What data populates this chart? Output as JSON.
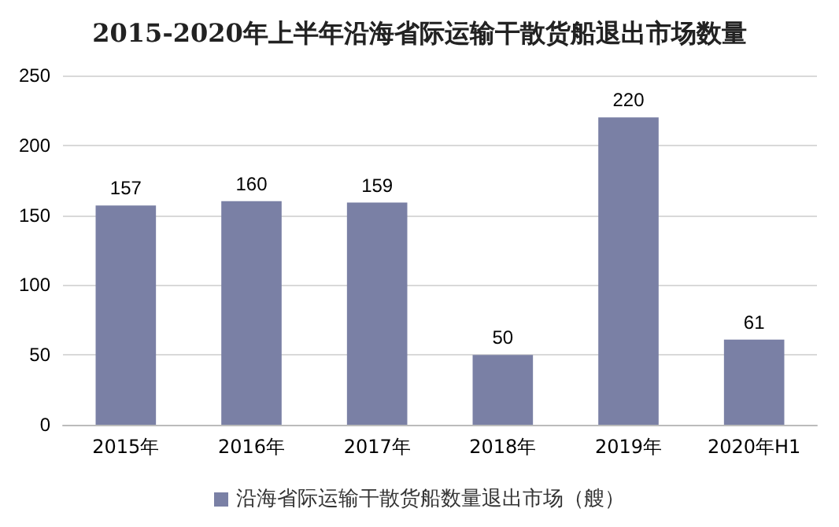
{
  "chart_data": {
    "type": "bar",
    "title": "2015-2020年上半年沿海省际运输干散货船退出市场数量",
    "categories": [
      "2015年",
      "2016年",
      "2017年",
      "2018年",
      "2019年",
      "2020年H1"
    ],
    "series": [
      {
        "name": "沿海省际运输干散货船数量退出市场（艘）",
        "color": "#7a80a5",
        "values": [
          157,
          160,
          159,
          50,
          220,
          61
        ]
      }
    ],
    "ylim": [
      0,
      250
    ],
    "yticks": [
      0,
      50,
      100,
      150,
      200,
      250
    ],
    "grid": "y",
    "legend": "bottom",
    "data_labels": true
  }
}
